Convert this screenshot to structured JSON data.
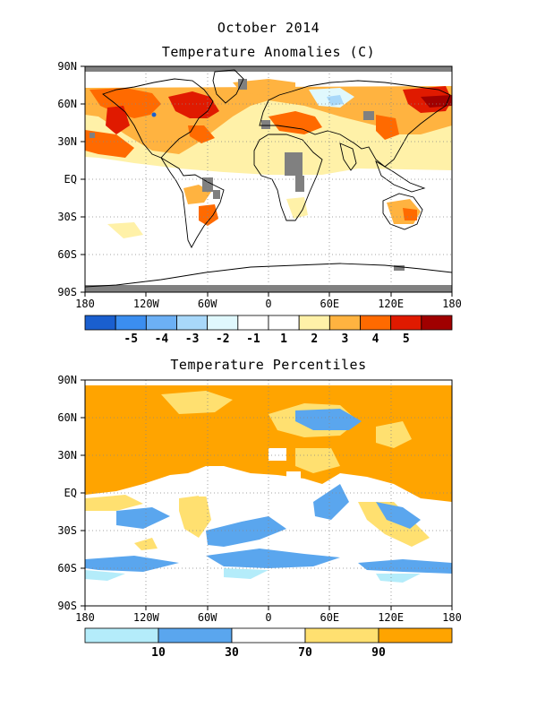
{
  "header": {
    "title": "October 2014"
  },
  "maps": [
    {
      "title": "Temperature Anomalies (C)",
      "x_ticks": [
        "180",
        "120W",
        "60W",
        "0",
        "60E",
        "120E",
        "180"
      ],
      "y_ticks": [
        "90N",
        "60N",
        "30N",
        "EQ",
        "30S",
        "60S",
        "90S"
      ],
      "colorbar": {
        "colors": [
          "#1a5fcf",
          "#3b8ef0",
          "#6cb0f5",
          "#a8d8fa",
          "#e0f8fd",
          "#ffffff",
          "#ffffff",
          "#fff1a8",
          "#ffb340",
          "#ff6a00",
          "#e01a00",
          "#a00000"
        ],
        "labels": [
          "-5",
          "-4",
          "-3",
          "-2",
          "-1",
          "1",
          "2",
          "3",
          "4",
          "5"
        ]
      },
      "colors": {
        "missing": "#808080",
        "warm": "#ffb340",
        "hot": "#ff6a00",
        "very_hot": "#e01a00",
        "extreme": "#a00000",
        "mild": "#fff1a8"
      }
    },
    {
      "title": "Temperature Percentiles",
      "x_ticks": [
        "180",
        "120W",
        "60W",
        "0",
        "60E",
        "120E",
        "180"
      ],
      "y_ticks": [
        "90N",
        "60N",
        "30N",
        "EQ",
        "30S",
        "60S",
        "90S"
      ],
      "colorbar": {
        "colors": [
          "#b4ecfa",
          "#5aa6ee",
          "#ffffff",
          "#ffe070",
          "#ffa400"
        ],
        "labels": [
          "10",
          "30",
          "70",
          "90"
        ]
      },
      "colors": {
        "above90": "#ffa400",
        "70to90": "#ffe070",
        "below10": "#b4ecfa",
        "10to30": "#5aa6ee"
      }
    }
  ]
}
